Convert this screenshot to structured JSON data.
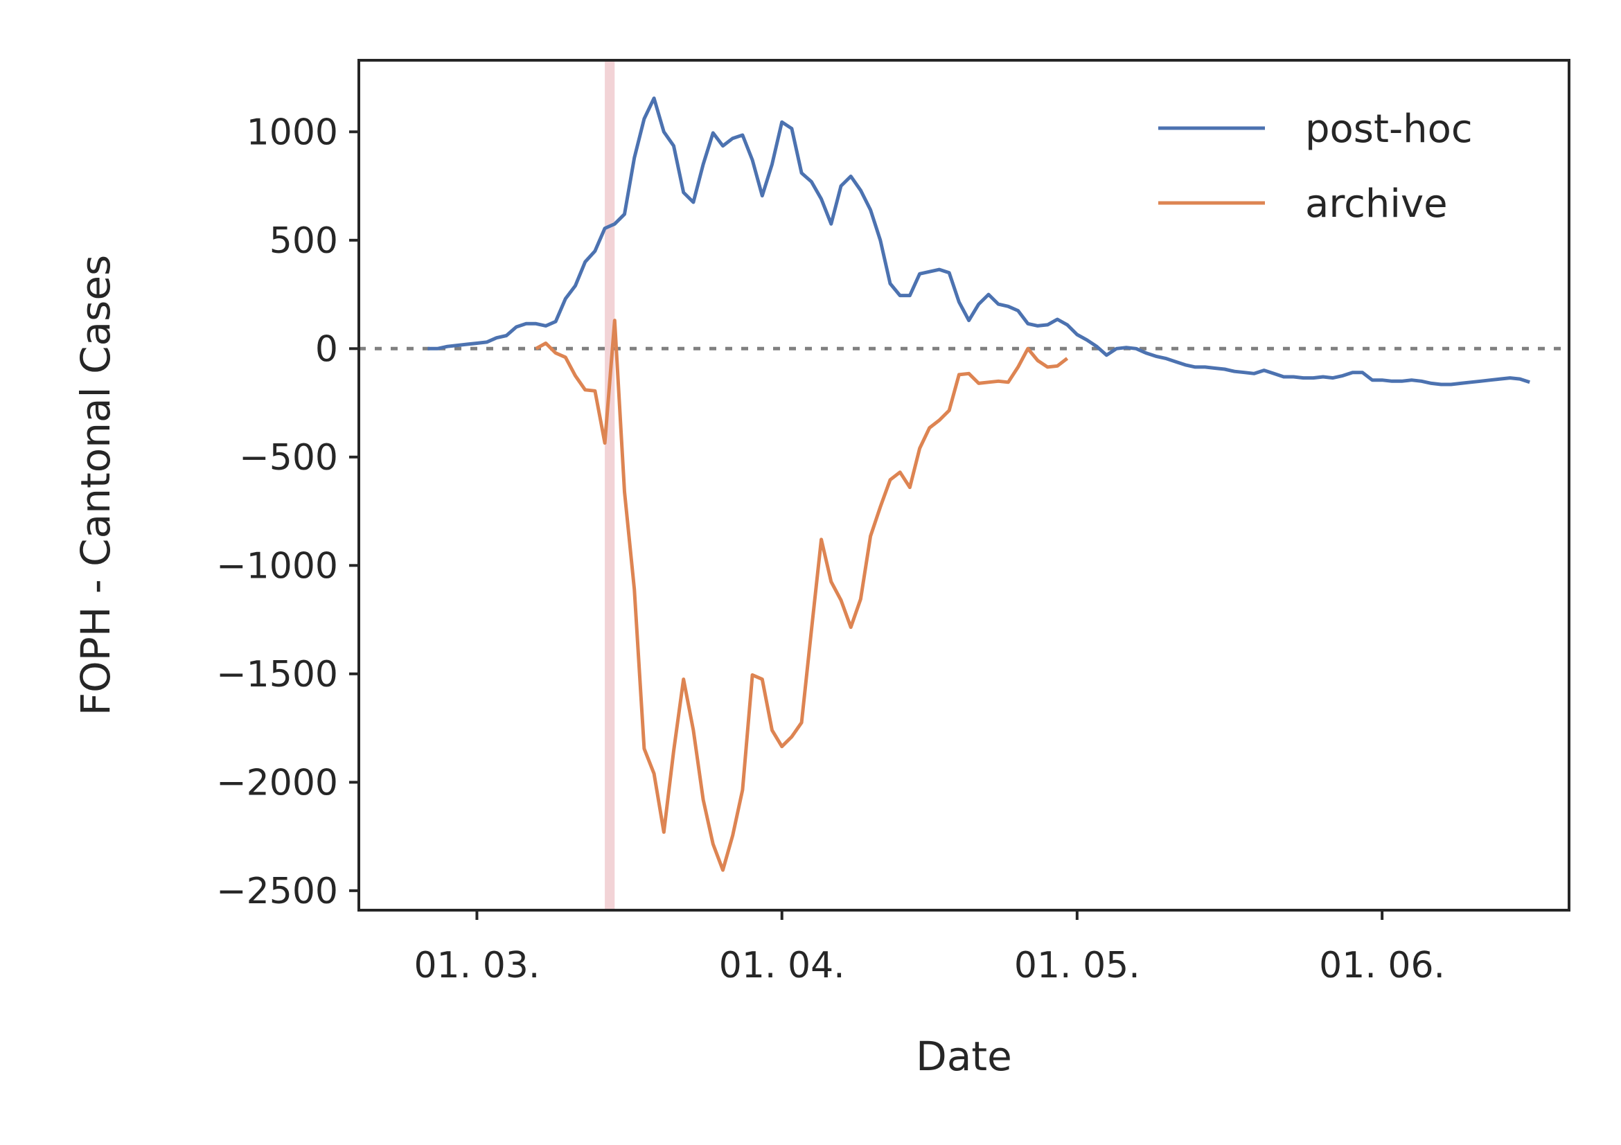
{
  "chart_data": {
    "type": "line",
    "xlabel": "Date",
    "ylabel": "FOPH - Cantonal Cases",
    "x_ticks": [
      {
        "date": "2020-03-01",
        "label": "01. 03."
      },
      {
        "date": "2020-04-01",
        "label": "01. 04."
      },
      {
        "date": "2020-05-01",
        "label": "01. 05."
      },
      {
        "date": "2020-06-01",
        "label": "01. 06."
      }
    ],
    "y_ticks": [
      1000,
      500,
      0,
      -500,
      -1000,
      -1500,
      -2000,
      -2500
    ],
    "y_tick_labels": [
      "1000",
      "500",
      "0",
      "−500",
      "−1000",
      "−1500",
      "−2000",
      "−2500"
    ],
    "xlim": [
      "2020-02-18",
      "2020-06-20"
    ],
    "ylim": [
      -2590,
      1330
    ],
    "grid": false,
    "legend_position": "top-right",
    "reference_line": {
      "y": 0,
      "style": "dotted",
      "color": "#808080"
    },
    "highlight_band": {
      "x_start": "2020-03-14",
      "x_end": "2020-03-15",
      "color": "#f2d3d6"
    },
    "series": [
      {
        "name": "post-hoc",
        "color": "#4c72b0",
        "points": [
          [
            "2020-02-25",
            0
          ],
          [
            "2020-02-26",
            0
          ],
          [
            "2020-02-27",
            10
          ],
          [
            "2020-02-28",
            15
          ],
          [
            "2020-02-29",
            20
          ],
          [
            "2020-03-01",
            25
          ],
          [
            "2020-03-02",
            30
          ],
          [
            "2020-03-03",
            50
          ],
          [
            "2020-03-04",
            60
          ],
          [
            "2020-03-05",
            100
          ],
          [
            "2020-03-06",
            115
          ],
          [
            "2020-03-07",
            115
          ],
          [
            "2020-03-08",
            105
          ],
          [
            "2020-03-09",
            125
          ],
          [
            "2020-03-10",
            230
          ],
          [
            "2020-03-11",
            290
          ],
          [
            "2020-03-12",
            400
          ],
          [
            "2020-03-13",
            450
          ],
          [
            "2020-03-14",
            555
          ],
          [
            "2020-03-15",
            575
          ],
          [
            "2020-03-16",
            620
          ],
          [
            "2020-03-17",
            880
          ],
          [
            "2020-03-18",
            1060
          ],
          [
            "2020-03-19",
            1155
          ],
          [
            "2020-03-20",
            1000
          ],
          [
            "2020-03-21",
            935
          ],
          [
            "2020-03-22",
            720
          ],
          [
            "2020-03-23",
            675
          ],
          [
            "2020-03-24",
            850
          ],
          [
            "2020-03-25",
            995
          ],
          [
            "2020-03-26",
            935
          ],
          [
            "2020-03-27",
            970
          ],
          [
            "2020-03-28",
            985
          ],
          [
            "2020-03-29",
            870
          ],
          [
            "2020-03-30",
            705
          ],
          [
            "2020-03-31",
            850
          ],
          [
            "2020-04-01",
            1045
          ],
          [
            "2020-04-02",
            1015
          ],
          [
            "2020-04-03",
            810
          ],
          [
            "2020-04-04",
            770
          ],
          [
            "2020-04-05",
            690
          ],
          [
            "2020-04-06",
            575
          ],
          [
            "2020-04-07",
            750
          ],
          [
            "2020-04-08",
            795
          ],
          [
            "2020-04-09",
            730
          ],
          [
            "2020-04-10",
            640
          ],
          [
            "2020-04-11",
            500
          ],
          [
            "2020-04-12",
            300
          ],
          [
            "2020-04-13",
            245
          ],
          [
            "2020-04-14",
            245
          ],
          [
            "2020-04-15",
            345
          ],
          [
            "2020-04-16",
            355
          ],
          [
            "2020-04-17",
            365
          ],
          [
            "2020-04-18",
            350
          ],
          [
            "2020-04-19",
            215
          ],
          [
            "2020-04-20",
            130
          ],
          [
            "2020-04-21",
            205
          ],
          [
            "2020-04-22",
            250
          ],
          [
            "2020-04-23",
            205
          ],
          [
            "2020-04-24",
            195
          ],
          [
            "2020-04-25",
            175
          ],
          [
            "2020-04-26",
            115
          ],
          [
            "2020-04-27",
            105
          ],
          [
            "2020-04-28",
            110
          ],
          [
            "2020-04-29",
            135
          ],
          [
            "2020-04-30",
            110
          ],
          [
            "2020-05-01",
            65
          ],
          [
            "2020-05-02",
            40
          ],
          [
            "2020-05-03",
            10
          ],
          [
            "2020-05-04",
            -30
          ],
          [
            "2020-05-05",
            0
          ],
          [
            "2020-05-06",
            5
          ],
          [
            "2020-05-07",
            0
          ],
          [
            "2020-05-08",
            -20
          ],
          [
            "2020-05-09",
            -35
          ],
          [
            "2020-05-10",
            -45
          ],
          [
            "2020-05-11",
            -60
          ],
          [
            "2020-05-12",
            -75
          ],
          [
            "2020-05-13",
            -85
          ],
          [
            "2020-05-14",
            -85
          ],
          [
            "2020-05-15",
            -90
          ],
          [
            "2020-05-16",
            -95
          ],
          [
            "2020-05-17",
            -105
          ],
          [
            "2020-05-18",
            -110
          ],
          [
            "2020-05-19",
            -115
          ],
          [
            "2020-05-20",
            -100
          ],
          [
            "2020-05-21",
            -115
          ],
          [
            "2020-05-22",
            -130
          ],
          [
            "2020-05-23",
            -130
          ],
          [
            "2020-05-24",
            -135
          ],
          [
            "2020-05-25",
            -135
          ],
          [
            "2020-05-26",
            -130
          ],
          [
            "2020-05-27",
            -135
          ],
          [
            "2020-05-28",
            -125
          ],
          [
            "2020-05-29",
            -110
          ],
          [
            "2020-05-30",
            -110
          ],
          [
            "2020-05-31",
            -145
          ],
          [
            "2020-06-01",
            -145
          ],
          [
            "2020-06-02",
            -150
          ],
          [
            "2020-06-03",
            -150
          ],
          [
            "2020-06-04",
            -145
          ],
          [
            "2020-06-05",
            -150
          ],
          [
            "2020-06-06",
            -160
          ],
          [
            "2020-06-07",
            -165
          ],
          [
            "2020-06-08",
            -165
          ],
          [
            "2020-06-09",
            -160
          ],
          [
            "2020-06-10",
            -155
          ],
          [
            "2020-06-11",
            -150
          ],
          [
            "2020-06-12",
            -145
          ],
          [
            "2020-06-13",
            -140
          ],
          [
            "2020-06-14",
            -135
          ],
          [
            "2020-06-15",
            -140
          ],
          [
            "2020-06-16",
            -155
          ]
        ]
      },
      {
        "name": "archive",
        "color": "#dd8452",
        "points": [
          [
            "2020-03-07",
            0
          ],
          [
            "2020-03-08",
            25
          ],
          [
            "2020-03-09",
            -20
          ],
          [
            "2020-03-10",
            -40
          ],
          [
            "2020-03-11",
            -125
          ],
          [
            "2020-03-12",
            -190
          ],
          [
            "2020-03-13",
            -195
          ],
          [
            "2020-03-14",
            -435
          ],
          [
            "2020-03-15",
            130
          ],
          [
            "2020-03-16",
            -660
          ],
          [
            "2020-03-17",
            -1110
          ],
          [
            "2020-03-18",
            -1845
          ],
          [
            "2020-03-19",
            -1960
          ],
          [
            "2020-03-20",
            -2230
          ],
          [
            "2020-03-21",
            -1855
          ],
          [
            "2020-03-22",
            -1525
          ],
          [
            "2020-03-23",
            -1760
          ],
          [
            "2020-03-24",
            -2080
          ],
          [
            "2020-03-25",
            -2285
          ],
          [
            "2020-03-26",
            -2405
          ],
          [
            "2020-03-27",
            -2245
          ],
          [
            "2020-03-28",
            -2035
          ],
          [
            "2020-03-29",
            -1505
          ],
          [
            "2020-03-30",
            -1525
          ],
          [
            "2020-03-31",
            -1760
          ],
          [
            "2020-04-01",
            -1835
          ],
          [
            "2020-04-02",
            -1790
          ],
          [
            "2020-04-03",
            -1725
          ],
          [
            "2020-04-04",
            -1300
          ],
          [
            "2020-04-05",
            -880
          ],
          [
            "2020-04-06",
            -1075
          ],
          [
            "2020-04-07",
            -1160
          ],
          [
            "2020-04-08",
            -1285
          ],
          [
            "2020-04-09",
            -1155
          ],
          [
            "2020-04-10",
            -865
          ],
          [
            "2020-04-11",
            -730
          ],
          [
            "2020-04-12",
            -605
          ],
          [
            "2020-04-13",
            -570
          ],
          [
            "2020-04-14",
            -640
          ],
          [
            "2020-04-15",
            -460
          ],
          [
            "2020-04-16",
            -365
          ],
          [
            "2020-04-17",
            -330
          ],
          [
            "2020-04-18",
            -285
          ],
          [
            "2020-04-19",
            -120
          ],
          [
            "2020-04-20",
            -115
          ],
          [
            "2020-04-21",
            -160
          ],
          [
            "2020-04-22",
            -155
          ],
          [
            "2020-04-23",
            -150
          ],
          [
            "2020-04-24",
            -155
          ],
          [
            "2020-04-25",
            -85
          ],
          [
            "2020-04-26",
            0
          ],
          [
            "2020-04-27",
            -55
          ],
          [
            "2020-04-28",
            -85
          ],
          [
            "2020-04-29",
            -80
          ],
          [
            "2020-04-30",
            -45
          ]
        ]
      }
    ]
  }
}
